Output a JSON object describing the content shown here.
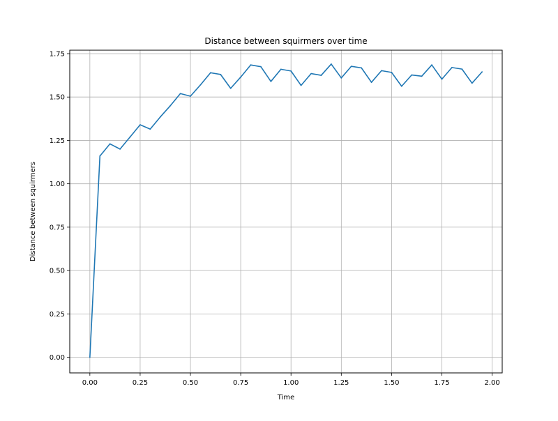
{
  "colors": {
    "series": "#1f77b4",
    "grid": "#b0b0b0",
    "axis": "#000000",
    "background": "#ffffff"
  },
  "chart_data": {
    "type": "line",
    "title": "Distance between squirmers over time",
    "xlabel": "Time",
    "ylabel": "Distance between squirmers",
    "xlim": [
      -0.1,
      2.05
    ],
    "ylim": [
      -0.09,
      1.77
    ],
    "grid": true,
    "xticks": [
      0.0,
      0.25,
      0.5,
      0.75,
      1.0,
      1.25,
      1.5,
      1.75,
      2.0
    ],
    "xtick_labels": [
      "0.00",
      "0.25",
      "0.50",
      "0.75",
      "1.00",
      "1.25",
      "1.50",
      "1.75",
      "2.00"
    ],
    "yticks": [
      0.0,
      0.25,
      0.5,
      0.75,
      1.0,
      1.25,
      1.5,
      1.75
    ],
    "ytick_labels": [
      "0.00",
      "0.25",
      "0.50",
      "0.75",
      "1.00",
      "1.25",
      "1.50",
      "1.75"
    ],
    "series": [
      {
        "x": [
          0.0,
          0.05,
          0.1,
          0.15,
          0.2,
          0.25,
          0.3,
          0.35,
          0.4,
          0.45,
          0.5,
          0.55,
          0.6,
          0.65,
          0.7,
          0.75,
          0.8,
          0.85,
          0.9,
          0.95,
          1.0,
          1.05,
          1.1,
          1.15,
          1.2,
          1.25,
          1.3,
          1.35,
          1.4,
          1.45,
          1.5,
          1.55,
          1.6,
          1.65,
          1.7,
          1.75,
          1.8,
          1.85,
          1.9,
          1.95
        ],
        "y": [
          0.0,
          1.16,
          1.23,
          1.2,
          1.27,
          1.34,
          1.315,
          1.385,
          1.45,
          1.52,
          1.505,
          1.57,
          1.64,
          1.63,
          1.55,
          1.615,
          1.685,
          1.675,
          1.59,
          1.66,
          1.65,
          1.567,
          1.635,
          1.625,
          1.69,
          1.61,
          1.677,
          1.668,
          1.585,
          1.652,
          1.642,
          1.562,
          1.627,
          1.62,
          1.685,
          1.603,
          1.67,
          1.661,
          1.58,
          1.645
        ]
      }
    ]
  }
}
